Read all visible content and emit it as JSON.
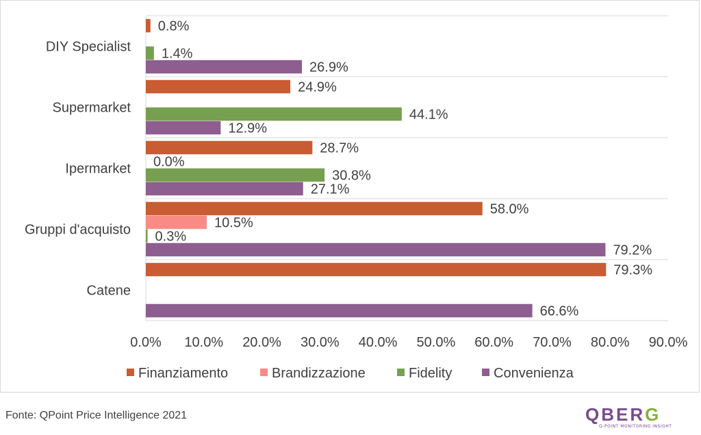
{
  "chart_data": {
    "type": "bar",
    "orientation": "horizontal",
    "categories": [
      "DIY Specialist",
      "Supermarket",
      "Ipermarket",
      "Gruppi d'acquisto",
      "Catene"
    ],
    "series": [
      {
        "name": "Finanziamento",
        "color": "#c95c32",
        "values": [
          0.8,
          24.9,
          28.7,
          58.0,
          79.3
        ],
        "labels": [
          "0.8%",
          "24.9%",
          "28.7%",
          "58.0%",
          "79.3%"
        ]
      },
      {
        "name": "Brandizzazione",
        "color": "#f88b86",
        "values": [
          null,
          null,
          0.0,
          10.5,
          null
        ],
        "labels": [
          null,
          null,
          "0.0%",
          "10.5%",
          null
        ]
      },
      {
        "name": "Fidelity",
        "color": "#76a050",
        "values": [
          1.4,
          44.1,
          30.8,
          0.3,
          null
        ],
        "labels": [
          "1.4%",
          "44.1%",
          "30.8%",
          "0.3%",
          null
        ]
      },
      {
        "name": "Convenienza",
        "color": "#8d5e8f",
        "values": [
          26.9,
          12.9,
          27.1,
          79.2,
          66.6
        ],
        "labels": [
          "26.9%",
          "12.9%",
          "27.1%",
          "79.2%",
          "66.6%"
        ]
      }
    ],
    "xlim": [
      0,
      90
    ],
    "x_ticks": [
      "0.0%",
      "10.0%",
      "20.0%",
      "30.0%",
      "40.0%",
      "50.0%",
      "60.0%",
      "70.0%",
      "80.0%",
      "90.0%"
    ],
    "legend_position": "bottom",
    "grid": "horizontal category separators"
  },
  "source_text": "Fonte: QPoint Price Intelligence 2021",
  "logo": {
    "word_main": "QBER",
    "word_accent": "G",
    "tagline": "Q-POINT MONITORING INSIGHT"
  }
}
